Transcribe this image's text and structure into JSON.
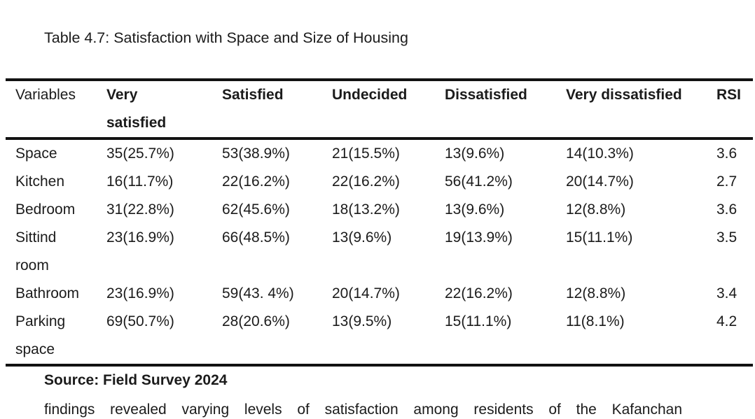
{
  "title": "Table 4.7: Satisfaction with Space and Size of Housing",
  "table": {
    "columns": [
      "Variables",
      "Very\nsatisfied",
      "Satisfied",
      "Undecided",
      "Dissatisfied",
      "Very dissatisfied",
      "RSI"
    ],
    "rows": [
      {
        "variable": "Space",
        "cells": [
          "35(25.7%)",
          "53(38.9%)",
          "21(15.5%)",
          "13(9.6%)",
          "14(10.3%)",
          "3.6"
        ]
      },
      {
        "variable": "Kitchen",
        "cells": [
          "16(11.7%)",
          "22(16.2%)",
          "22(16.2%)",
          "56(41.2%)",
          "20(14.7%)",
          "2.7"
        ]
      },
      {
        "variable": "Bedroom",
        "cells": [
          "31(22.8%)",
          "62(45.6%)",
          "18(13.2%)",
          "13(9.6%)",
          "12(8.8%)",
          "3.6"
        ]
      },
      {
        "variable": "Sittind\nroom",
        "cells": [
          "23(16.9%)",
          "66(48.5%)",
          "13(9.6%)",
          "19(13.9%)",
          "15(11.1%)",
          "3.5"
        ]
      },
      {
        "variable": "Bathroom",
        "cells": [
          "23(16.9%)",
          "59(43. 4%)",
          "20(14.7%)",
          "22(16.2%)",
          "12(8.8%)",
          "3.4"
        ]
      },
      {
        "variable": "Parking\nspace",
        "cells": [
          "69(50.7%)",
          "28(20.6%)",
          "13(9.5%)",
          "15(11.1%)",
          "11(8.1%)",
          "4.2"
        ]
      }
    ],
    "source_note": "Source: Field Survey 2024"
  },
  "paragraph": "findings revealed varying levels of satisfaction among residents of the Kafanchan",
  "colors": {
    "text": "#1b1b1b",
    "rule": "#121212",
    "background": "#ffffff"
  }
}
